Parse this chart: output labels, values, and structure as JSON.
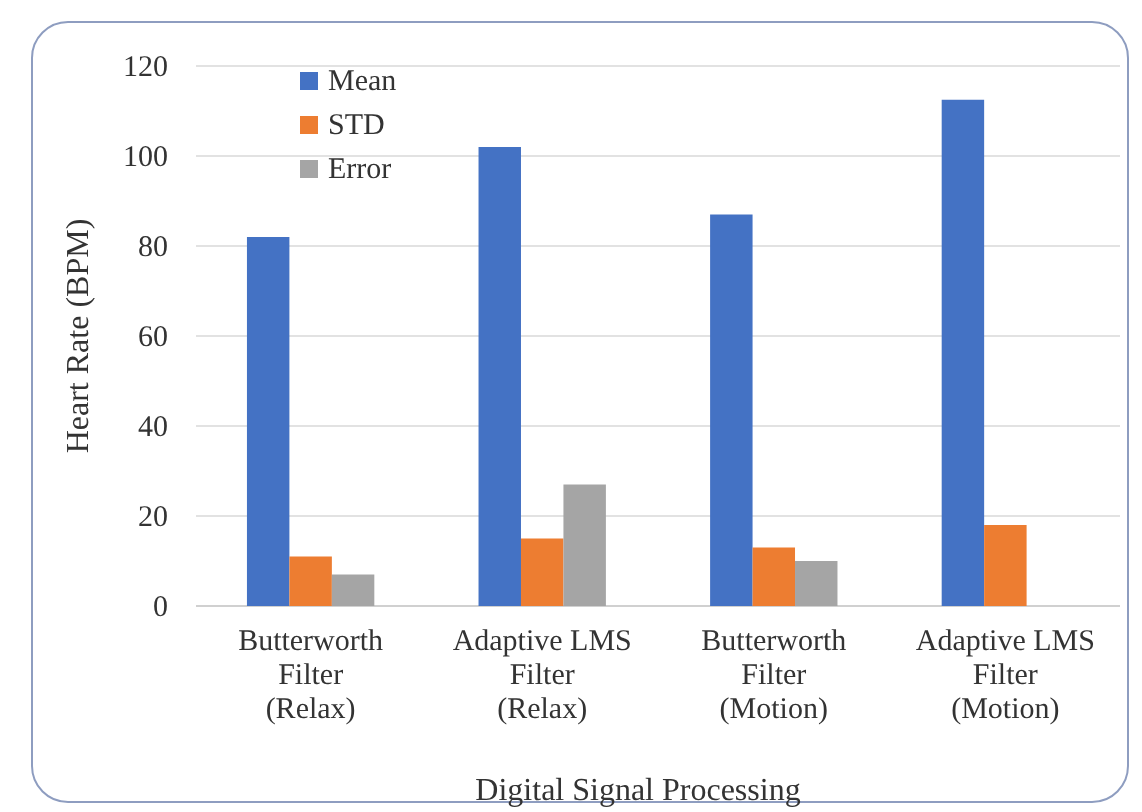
{
  "chart_data": {
    "type": "bar",
    "xlabel": "Digital Signal Processing",
    "ylabel": "Heart Rate (BPM)",
    "categories": [
      "Butterworth Filter (Relax)",
      "Adaptive LMS Filter (Relax)",
      "Butterworth Filter (Motion)",
      "Adaptive LMS Filter (Motion)"
    ],
    "series": [
      {
        "name": "Mean",
        "color": "#4472c4",
        "values": [
          82,
          102,
          87,
          112.5
        ]
      },
      {
        "name": "STD",
        "color": "#ed7d31",
        "values": [
          11,
          15,
          13,
          18
        ]
      },
      {
        "name": "Error",
        "color": "#a5a5a5",
        "values": [
          7,
          27,
          10,
          0
        ]
      }
    ],
    "ylim": [
      0,
      120
    ],
    "yticks": [
      0,
      20,
      40,
      60,
      80,
      100,
      120
    ],
    "grid": "y",
    "legend": "top left"
  }
}
